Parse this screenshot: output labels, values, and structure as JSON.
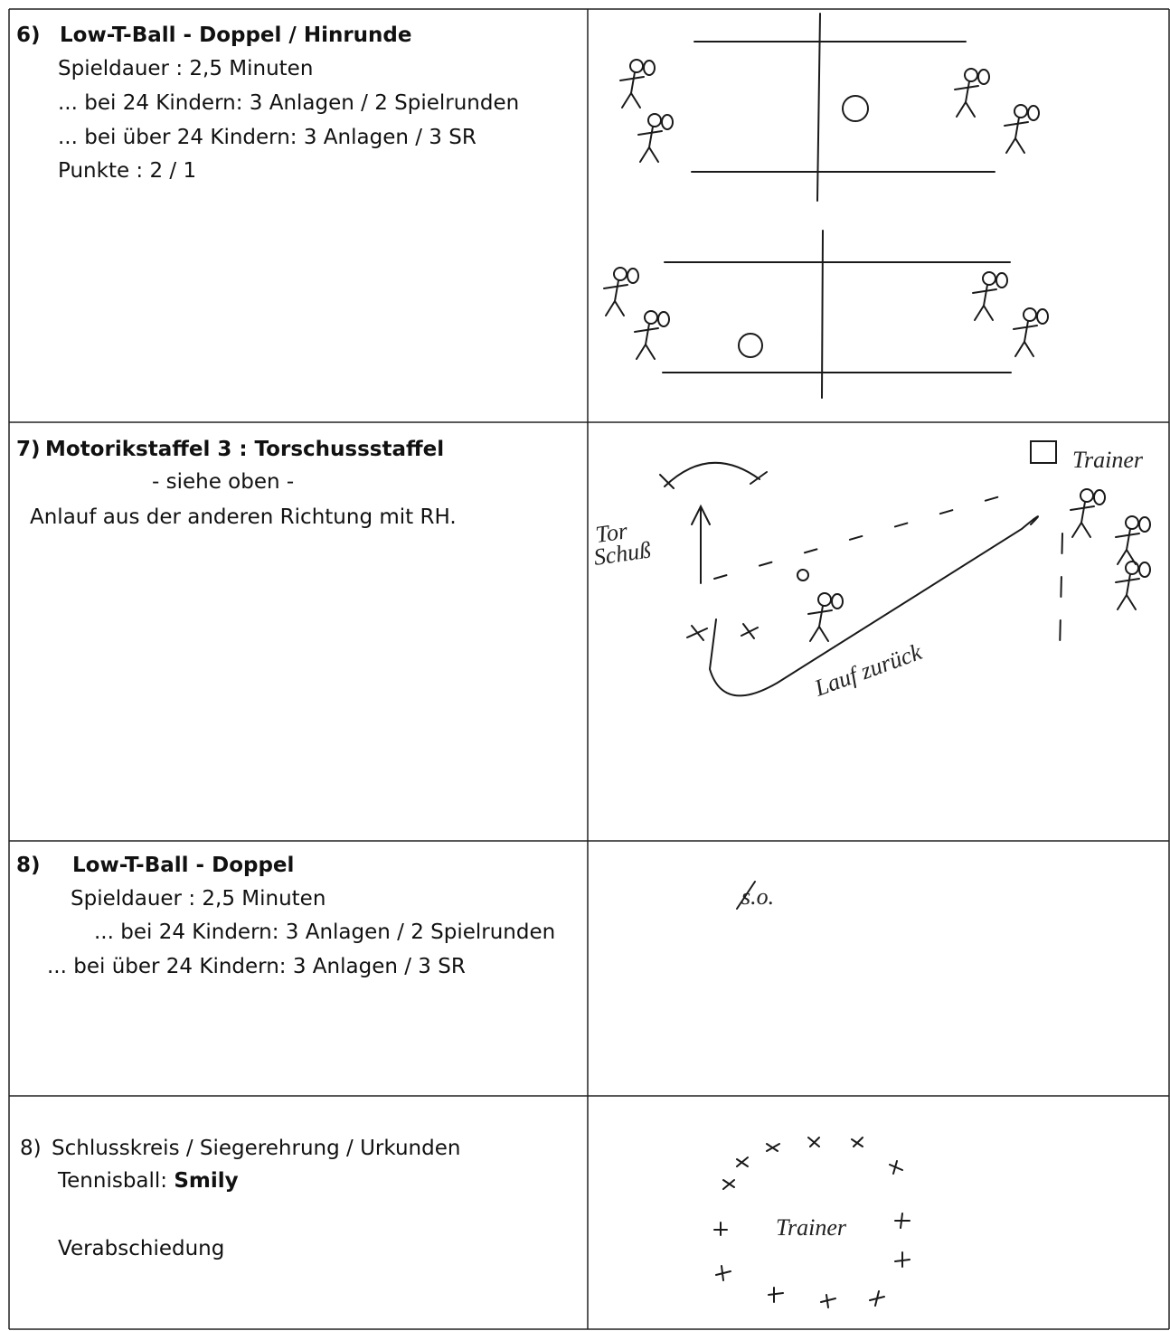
{
  "rows": [
    {
      "number": "6)",
      "title": "Low-T-Ball - Doppel / Hinrunde",
      "lines": [
        "Spieldauer : 2,5 Minuten",
        "... bei 24 Kindern: 3 Anlagen / 2 Spielrunden",
        "... bei über 24 Kindern: 3 Anlagen / 3 SR",
        "Punkte : 2 / 1"
      ]
    },
    {
      "number": "7)",
      "title": "Motorikstaffel 3 : Torschussstaffel",
      "lines": [
        "- siehe oben -",
        "Anlauf aus der anderen Richtung mit RH."
      ],
      "sketch_labels": [
        "Tor",
        "Schuß",
        "Trainer",
        "Lauf zurück"
      ]
    },
    {
      "number": "8)",
      "title": "Low-T-Ball - Doppel",
      "lines": [
        "Spieldauer : 2,5 Minuten",
        "... bei 24 Kindern: 3 Anlagen / 2 Spielrunden",
        "... bei über 24 Kindern: 3 Anlagen / 3 SR"
      ],
      "sketch_labels": [
        "s.o."
      ]
    },
    {
      "number": "8)",
      "title": "Schlusskreis / Siegerehrung / Urkunden",
      "lines": [
        "Tennisball:",
        "Smily",
        "Verabschiedung"
      ],
      "sketch_labels": [
        "Trainer"
      ]
    }
  ]
}
